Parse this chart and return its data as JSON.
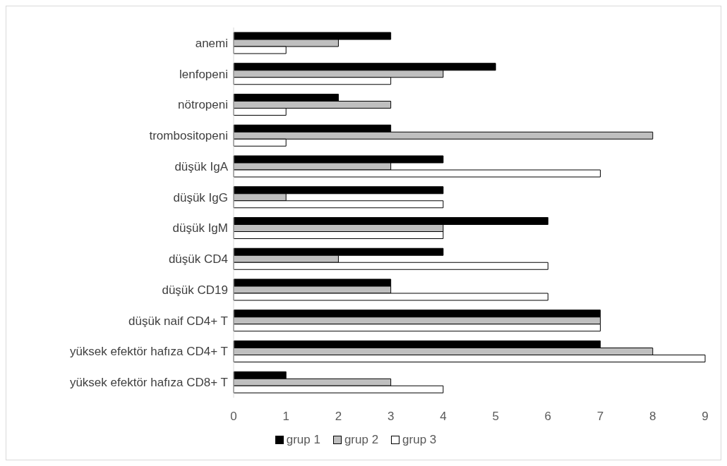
{
  "chart_data": {
    "type": "bar",
    "orientation": "horizontal",
    "categories": [
      "anemi",
      "lenfopeni",
      "nötropeni",
      "trombositopeni",
      "düşük IgA",
      "düşük IgG",
      "düşük IgM",
      "düşük CD4",
      "düşük CD19",
      "düşük naif CD4+ T",
      "yüksek efektör hafıza CD4+ T",
      "yüksek efektör hafıza CD8+ T"
    ],
    "series": [
      {
        "name": "grup 1",
        "color": "#000000",
        "values": [
          3,
          5,
          2,
          3,
          4,
          4,
          6,
          4,
          3,
          7,
          7,
          1
        ]
      },
      {
        "name": "grup 2",
        "color": "#bfbfbf",
        "values": [
          2,
          4,
          3,
          8,
          3,
          1,
          4,
          2,
          3,
          7,
          8,
          3
        ]
      },
      {
        "name": "grup 3",
        "color": "#ffffff",
        "values": [
          1,
          3,
          1,
          1,
          7,
          4,
          4,
          6,
          6,
          7,
          9,
          4
        ]
      }
    ],
    "xlim": [
      0,
      9
    ],
    "xticks": [
      0,
      1,
      2,
      3,
      4,
      5,
      6,
      7,
      8,
      9
    ],
    "grid": false,
    "legend": "bottom"
  }
}
